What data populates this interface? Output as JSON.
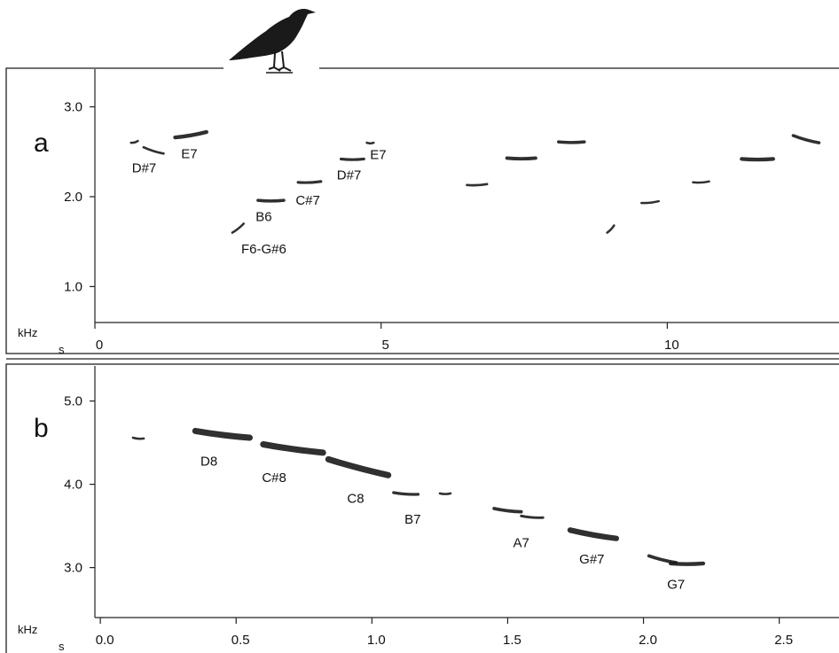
{
  "chart_data": [
    {
      "type": "scatter",
      "panel": "a",
      "xlabel": "s",
      "ylabel": "kHz",
      "xlim": [
        0,
        13
      ],
      "ylim": [
        0.6,
        3.4
      ],
      "x_ticks": [
        "0",
        "5",
        "10"
      ],
      "y_ticks": [
        "1.0",
        "2.0",
        "3.0"
      ],
      "grid": false,
      "notes": [
        {
          "t": 0.63,
          "f": 2.6,
          "f_end": 2.62,
          "dur": 0.12
        },
        {
          "t": 0.85,
          "f": 2.55,
          "f_end": 2.48,
          "dur": 0.35
        },
        {
          "t": 1.4,
          "f": 2.66,
          "f_end": 2.72,
          "dur": 0.55
        },
        {
          "t": 2.4,
          "f": 1.6,
          "f_end": 1.7,
          "dur": 0.2
        },
        {
          "t": 2.85,
          "f": 1.96,
          "f_end": 1.96,
          "dur": 0.45
        },
        {
          "t": 3.55,
          "f": 2.16,
          "f_end": 2.17,
          "dur": 0.4
        },
        {
          "t": 4.3,
          "f": 2.42,
          "f_end": 2.42,
          "dur": 0.4
        },
        {
          "t": 4.75,
          "f": 2.6,
          "f_end": 2.6,
          "dur": 0.12
        },
        {
          "t": 6.5,
          "f": 2.13,
          "f_end": 2.14,
          "dur": 0.35
        },
        {
          "t": 7.2,
          "f": 2.43,
          "f_end": 2.43,
          "dur": 0.5
        },
        {
          "t": 8.1,
          "f": 2.61,
          "f_end": 2.61,
          "dur": 0.45
        },
        {
          "t": 8.95,
          "f": 1.6,
          "f_end": 1.68,
          "dur": 0.12
        },
        {
          "t": 9.55,
          "f": 1.93,
          "f_end": 1.95,
          "dur": 0.3
        },
        {
          "t": 10.45,
          "f": 2.16,
          "f_end": 2.17,
          "dur": 0.28
        },
        {
          "t": 11.3,
          "f": 2.42,
          "f_end": 2.42,
          "dur": 0.55
        },
        {
          "t": 12.2,
          "f": 2.68,
          "f_end": 2.6,
          "dur": 0.45
        }
      ],
      "labels": [
        {
          "text": "D#7",
          "t": 0.86,
          "f": 2.32
        },
        {
          "text": "E7",
          "t": 1.65,
          "f": 2.48
        },
        {
          "text": "B6",
          "t": 2.95,
          "f": 1.78
        },
        {
          "text": "F6-G#6",
          "t": 2.95,
          "f": 1.42
        },
        {
          "text": "C#7",
          "t": 3.72,
          "f": 1.96
        },
        {
          "text": "D#7",
          "t": 4.44,
          "f": 2.24
        },
        {
          "text": "E7",
          "t": 4.95,
          "f": 2.47
        }
      ]
    },
    {
      "type": "scatter",
      "panel": "b",
      "xlabel": "s",
      "ylabel": "kHz",
      "xlim": [
        -0.02,
        2.72
      ],
      "ylim": [
        2.4,
        5.4
      ],
      "x_ticks": [
        "0.0",
        "0.5",
        "1.0",
        "1.5",
        "2.0",
        "2.5"
      ],
      "y_ticks": [
        "3.0",
        "4.0",
        "5.0"
      ],
      "grid": false,
      "notes": [
        {
          "t": 0.12,
          "f": 4.56,
          "f_end": 4.55,
          "dur": 0.04
        },
        {
          "t": 0.35,
          "f": 4.64,
          "f_end": 4.56,
          "dur": 0.2
        },
        {
          "t": 0.6,
          "f": 4.48,
          "f_end": 4.38,
          "dur": 0.22
        },
        {
          "t": 0.84,
          "f": 4.3,
          "f_end": 4.11,
          "dur": 0.22
        },
        {
          "t": 1.08,
          "f": 3.9,
          "f_end": 3.88,
          "dur": 0.09
        },
        {
          "t": 1.25,
          "f": 3.89,
          "f_end": 3.89,
          "dur": 0.04
        },
        {
          "t": 1.45,
          "f": 3.71,
          "f_end": 3.67,
          "dur": 0.1
        },
        {
          "t": 1.55,
          "f": 3.62,
          "f_end": 3.6,
          "dur": 0.08
        },
        {
          "t": 1.73,
          "f": 3.45,
          "f_end": 3.35,
          "dur": 0.17
        },
        {
          "t": 2.02,
          "f": 3.14,
          "f_end": 3.06,
          "dur": 0.1
        },
        {
          "t": 2.1,
          "f": 3.05,
          "f_end": 3.05,
          "dur": 0.12
        }
      ],
      "labels": [
        {
          "text": "D8",
          "t": 0.4,
          "f": 4.28
        },
        {
          "text": "C#8",
          "t": 0.64,
          "f": 4.08
        },
        {
          "text": "C8",
          "t": 0.94,
          "f": 3.83
        },
        {
          "text": "B7",
          "t": 1.15,
          "f": 3.58
        },
        {
          "text": "A7",
          "t": 1.55,
          "f": 3.3
        },
        {
          "text": "G#7",
          "t": 1.81,
          "f": 3.1
        },
        {
          "text": "G7",
          "t": 2.12,
          "f": 2.8
        }
      ]
    }
  ],
  "icons": {
    "bird": "blackbird-silhouette-icon"
  },
  "colors": {
    "ink": "#111111",
    "note": "#1a1a1a",
    "frame": "#222222"
  }
}
